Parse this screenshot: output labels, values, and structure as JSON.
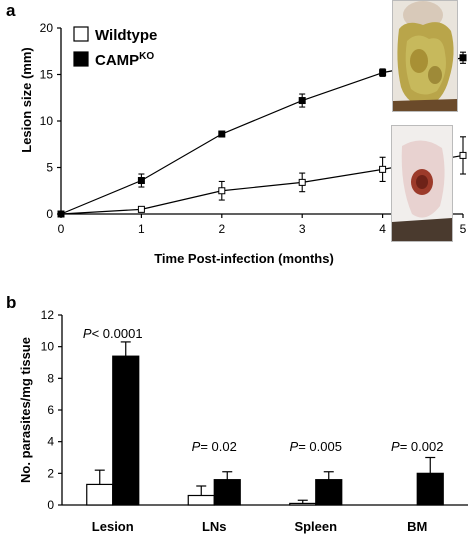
{
  "colors": {
    "wildtype_fill": "#ffffff",
    "campko_fill": "#000000",
    "stroke": "#000000"
  },
  "chart_data": [
    {
      "panel": "a",
      "type": "line",
      "xlabel": "Time Post-infection (months)",
      "ylabel": "Lesion size (mm)",
      "xlim": [
        0,
        5
      ],
      "ylim": [
        0,
        20
      ],
      "xticks": [
        "0",
        "1",
        "2",
        "3",
        "4",
        "5"
      ],
      "yticks": [
        "0",
        "5",
        "10",
        "15",
        "20"
      ],
      "grid": false,
      "legend_position": "top-left",
      "series": [
        {
          "name": "Wildtype",
          "marker": "open-square",
          "x": [
            0,
            1,
            2,
            3,
            4,
            5
          ],
          "y": [
            0,
            0.5,
            2.5,
            3.4,
            4.8,
            6.3
          ],
          "err": [
            0,
            0.3,
            1.0,
            1.0,
            1.3,
            2.0
          ]
        },
        {
          "name": "CAMP",
          "name_superscript": "KO",
          "marker": "filled-square",
          "x": [
            0,
            1,
            2,
            3,
            4,
            5
          ],
          "y": [
            0,
            3.6,
            8.6,
            12.2,
            15.2,
            16.8
          ],
          "err": [
            0,
            0.7,
            0.3,
            0.7,
            0.4,
            0.6
          ]
        }
      ],
      "images": [
        "lesion photo (CAMP KO)",
        "lesion photo (Wildtype)"
      ]
    },
    {
      "panel": "b",
      "type": "bar",
      "ylabel": "No. parasites/mg tissue",
      "ylim": [
        0,
        12
      ],
      "yticks": [
        "0",
        "2",
        "4",
        "6",
        "8",
        "10",
        "12"
      ],
      "categories": [
        "Lesion",
        "LNs",
        "Spleen",
        "BM"
      ],
      "series": [
        {
          "name": "Wildtype",
          "fill": "white",
          "values": [
            1.3,
            0.6,
            0.1,
            0
          ],
          "err": [
            0.9,
            0.6,
            0.2,
            0
          ]
        },
        {
          "name": "CAMP",
          "name_superscript": "KO",
          "fill": "black",
          "values": [
            9.4,
            1.6,
            1.6,
            2.0
          ],
          "err": [
            0.9,
            0.5,
            0.5,
            1.0
          ]
        }
      ],
      "annotations": [
        {
          "p": "P",
          "rest": "< 0.0001"
        },
        {
          "p": "P",
          "rest": "= 0.02"
        },
        {
          "p": "P",
          "rest": "= 0.005"
        },
        {
          "p": "P",
          "rest": "= 0.002"
        }
      ]
    }
  ]
}
